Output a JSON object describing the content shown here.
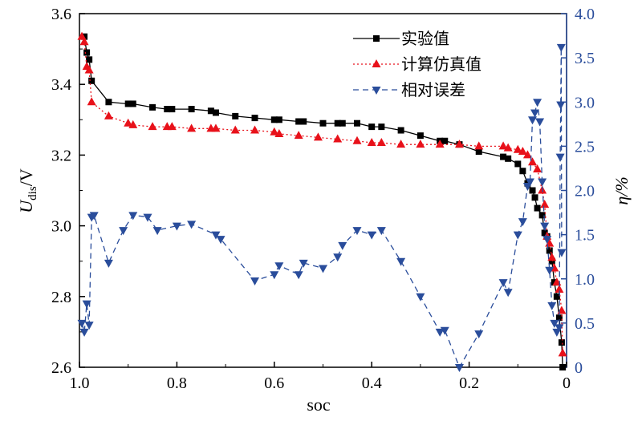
{
  "chart_data": {
    "type": "line",
    "title": "",
    "xlabel": "soc",
    "ylabel": {
      "main": "U",
      "sub": "dis",
      "suffix": "/V"
    },
    "y2label": "η/%",
    "xlim": [
      1.0,
      0
    ],
    "ylim": [
      2.6,
      3.6
    ],
    "y2lim": [
      0,
      4.0
    ],
    "x_ticks": [
      1.0,
      0.8,
      0.6,
      0.4,
      0.2,
      0
    ],
    "x_tick_labels": [
      "1.0",
      "0.8",
      "0.6",
      "0.4",
      "0.2",
      "0"
    ],
    "y_ticks": [
      2.6,
      2.8,
      3.0,
      3.2,
      3.4,
      3.6
    ],
    "y_tick_labels": [
      "2.6",
      "2.8",
      "3.0",
      "3.2",
      "3.4",
      "3.6"
    ],
    "y2_ticks": [
      0,
      0.5,
      1.0,
      1.5,
      2.0,
      2.5,
      3.0,
      3.5,
      4.0
    ],
    "y2_tick_labels": [
      "0",
      "0.5",
      "1.0",
      "1.5",
      "2.0",
      "2.5",
      "3.0",
      "3.5",
      "4.0"
    ],
    "grid": false,
    "legend_position": "top-right",
    "series": [
      {
        "name": "实验值",
        "axis": "left",
        "color": "#000000",
        "marker": "square",
        "line": "solid",
        "x": [
          0.99,
          0.985,
          0.98,
          0.975,
          0.94,
          0.9,
          0.89,
          0.85,
          0.82,
          0.81,
          0.77,
          0.73,
          0.72,
          0.68,
          0.64,
          0.6,
          0.59,
          0.55,
          0.54,
          0.5,
          0.47,
          0.46,
          0.43,
          0.4,
          0.38,
          0.34,
          0.3,
          0.26,
          0.25,
          0.22,
          0.18,
          0.13,
          0.12,
          0.1,
          0.09,
          0.08,
          0.07,
          0.065,
          0.06,
          0.05,
          0.045,
          0.04,
          0.035,
          0.03,
          0.025,
          0.02,
          0.015,
          0.01,
          0.008
        ],
        "y": [
          3.535,
          3.49,
          3.47,
          3.41,
          3.35,
          3.345,
          3.345,
          3.335,
          3.33,
          3.33,
          3.33,
          3.325,
          3.32,
          3.31,
          3.305,
          3.3,
          3.3,
          3.295,
          3.295,
          3.29,
          3.29,
          3.29,
          3.29,
          3.28,
          3.28,
          3.27,
          3.255,
          3.24,
          3.24,
          3.23,
          3.21,
          3.195,
          3.19,
          3.175,
          3.155,
          3.12,
          3.1,
          3.08,
          3.05,
          3.03,
          2.98,
          2.97,
          2.93,
          2.9,
          2.84,
          2.8,
          2.74,
          2.67,
          2.6
        ]
      },
      {
        "name": "计算仿真值",
        "axis": "left",
        "color": "#e8111a",
        "marker": "triangle-up",
        "line": "dotted",
        "x": [
          0.995,
          0.99,
          0.985,
          0.98,
          0.975,
          0.94,
          0.9,
          0.89,
          0.85,
          0.82,
          0.81,
          0.77,
          0.73,
          0.72,
          0.68,
          0.64,
          0.6,
          0.59,
          0.55,
          0.51,
          0.47,
          0.43,
          0.4,
          0.38,
          0.34,
          0.3,
          0.26,
          0.22,
          0.18,
          0.13,
          0.12,
          0.1,
          0.09,
          0.08,
          0.07,
          0.06,
          0.05,
          0.045,
          0.04,
          0.035,
          0.03,
          0.025,
          0.02,
          0.015,
          0.01,
          0.008
        ],
        "y": [
          3.535,
          3.52,
          3.45,
          3.44,
          3.35,
          3.31,
          3.29,
          3.285,
          3.28,
          3.28,
          3.28,
          3.275,
          3.275,
          3.275,
          3.27,
          3.27,
          3.265,
          3.26,
          3.255,
          3.25,
          3.245,
          3.24,
          3.235,
          3.235,
          3.23,
          3.23,
          3.23,
          3.23,
          3.225,
          3.225,
          3.22,
          3.215,
          3.21,
          3.2,
          3.18,
          3.16,
          3.1,
          3.06,
          2.97,
          2.95,
          2.91,
          2.88,
          2.84,
          2.82,
          2.76,
          2.64
        ]
      },
      {
        "name": "相对误差",
        "axis": "right",
        "color": "#2a4d9b",
        "marker": "triangle-down",
        "line": "dashed",
        "x": [
          0.995,
          0.99,
          0.985,
          0.98,
          0.975,
          0.97,
          0.94,
          0.91,
          0.89,
          0.86,
          0.84,
          0.8,
          0.77,
          0.72,
          0.71,
          0.64,
          0.6,
          0.59,
          0.55,
          0.54,
          0.5,
          0.47,
          0.46,
          0.43,
          0.4,
          0.38,
          0.34,
          0.3,
          0.26,
          0.25,
          0.22,
          0.18,
          0.13,
          0.12,
          0.1,
          0.09,
          0.08,
          0.075,
          0.07,
          0.065,
          0.06,
          0.055,
          0.05,
          0.045,
          0.04,
          0.035,
          0.03,
          0.025,
          0.02,
          0.015,
          0.013,
          0.012,
          0.011,
          0.01
        ],
        "y": [
          0.5,
          0.4,
          0.72,
          0.48,
          1.7,
          1.72,
          1.18,
          1.55,
          1.72,
          1.7,
          1.55,
          1.6,
          1.62,
          1.5,
          1.45,
          0.98,
          1.05,
          1.15,
          1.05,
          1.18,
          1.12,
          1.25,
          1.38,
          1.55,
          1.5,
          1.55,
          1.2,
          0.8,
          0.4,
          0.42,
          0.0,
          0.38,
          0.96,
          0.85,
          1.5,
          1.65,
          2.05,
          2.1,
          2.8,
          2.88,
          3.0,
          2.78,
          2.1,
          1.6,
          1.45,
          1.1,
          0.7,
          0.5,
          0.4,
          0.45,
          2.38,
          2.97,
          3.62,
          1.3
        ]
      }
    ]
  }
}
